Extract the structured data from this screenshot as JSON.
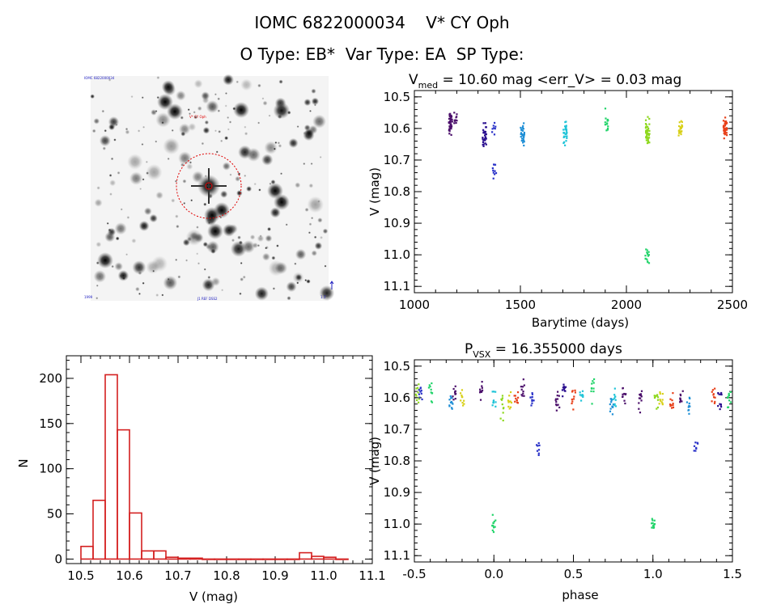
{
  "header": {
    "title": "IOMC 6822000034    V* CY Oph",
    "types": "O Type: EB*  Var Type: EA  SP Type:"
  },
  "thumbnail": {
    "tl_label": "IOMC 6822000034",
    "center_label": "V* CY Oph",
    "bl_label": "1999",
    "bc_label": "J1 REF DSS2",
    "br_label": "1.5'"
  },
  "chart_data": [
    {
      "id": "lightcurve",
      "type": "scatter",
      "title_main": "V",
      "title_sub": "med",
      "title_rest": " = 10.60 mag <err_V> = 0.03 mag",
      "xlabel": "Barytime (days)",
      "ylabel": "V (mag)",
      "xlim": [
        1000,
        2500
      ],
      "ylim": [
        11.12,
        10.48
      ],
      "y_inverted": true,
      "xticks": [
        1000,
        1500,
        2000,
        2500
      ],
      "yticks": [
        10.5,
        10.6,
        10.7,
        10.8,
        10.9,
        11.0,
        11.1
      ],
      "clusters": [
        {
          "x": 1170,
          "y": 10.58,
          "spread": 0.04,
          "n": 40,
          "color": "#4b0f6b"
        },
        {
          "x": 1195,
          "y": 10.57,
          "spread": 0.02,
          "n": 12,
          "color": "#4b0f6b"
        },
        {
          "x": 1330,
          "y": 10.62,
          "spread": 0.04,
          "n": 30,
          "color": "#2a0f8f"
        },
        {
          "x": 1375,
          "y": 10.6,
          "spread": 0.02,
          "n": 8,
          "color": "#2a32c8"
        },
        {
          "x": 1378,
          "y": 10.74,
          "spread": 0.03,
          "n": 10,
          "color": "#2a32c8"
        },
        {
          "x": 1510,
          "y": 10.62,
          "spread": 0.04,
          "n": 30,
          "color": "#1f8fd6"
        },
        {
          "x": 1710,
          "y": 10.61,
          "spread": 0.04,
          "n": 30,
          "color": "#20c4d8"
        },
        {
          "x": 1905,
          "y": 10.58,
          "spread": 0.04,
          "n": 15,
          "color": "#22d46a"
        },
        {
          "x": 2100,
          "y": 10.62,
          "spread": 0.05,
          "n": 45,
          "color": "#8ed81e"
        },
        {
          "x": 2098,
          "y": 11.0,
          "spread": 0.03,
          "n": 15,
          "color": "#22d46a"
        },
        {
          "x": 2255,
          "y": 10.6,
          "spread": 0.03,
          "n": 25,
          "color": "#d8d018"
        },
        {
          "x": 2465,
          "y": 10.6,
          "spread": 0.03,
          "n": 40,
          "color": "#e8401a"
        }
      ]
    },
    {
      "id": "histogram",
      "type": "bar",
      "xlabel": "V (mag)",
      "ylabel": "N",
      "xlim": [
        10.47,
        11.1
      ],
      "ylim": [
        -5,
        225
      ],
      "xticks": [
        10.5,
        10.6,
        10.7,
        10.8,
        10.9,
        11.0,
        11.1
      ],
      "yticks": [
        0,
        50,
        100,
        150,
        200
      ],
      "bin_width": 0.025,
      "bin_starts": [
        10.5,
        10.525,
        10.55,
        10.575,
        10.6,
        10.625,
        10.65,
        10.675,
        10.7,
        10.725,
        10.75,
        10.775,
        10.8,
        10.825,
        10.85,
        10.875,
        10.9,
        10.925,
        10.95,
        10.975,
        11.0,
        11.025
      ],
      "values": [
        14,
        65,
        204,
        143,
        51,
        9,
        9,
        2,
        1,
        1,
        0,
        0,
        0,
        0,
        0,
        0,
        0,
        0,
        7,
        3,
        2,
        0
      ],
      "color": "#d42020"
    },
    {
      "id": "phased",
      "type": "scatter",
      "title_main": "P",
      "title_sub": "VSX",
      "title_rest": " = 16.355000 days",
      "xlabel": "phase",
      "ylabel": "V (mag)",
      "xlim": [
        -0.5,
        1.5
      ],
      "ylim": [
        11.12,
        10.48
      ],
      "y_inverted": true,
      "xticks": [
        -0.5,
        0.0,
        0.5,
        1.0,
        1.5
      ],
      "yticks": [
        10.5,
        10.6,
        10.7,
        10.8,
        10.9,
        11.0,
        11.1
      ],
      "clusters": [
        {
          "x": -0.48,
          "y": 10.59,
          "spread": 0.03,
          "n": 12,
          "color": "#8ed81e"
        },
        {
          "x": -0.46,
          "y": 10.59,
          "spread": 0.03,
          "n": 10,
          "color": "#2a32c8"
        },
        {
          "x": -0.4,
          "y": 10.58,
          "spread": 0.04,
          "n": 10,
          "color": "#22d46a"
        },
        {
          "x": -0.27,
          "y": 10.62,
          "spread": 0.04,
          "n": 12,
          "color": "#1f8fd6"
        },
        {
          "x": -0.25,
          "y": 10.58,
          "spread": 0.03,
          "n": 10,
          "color": "#4b0f6b"
        },
        {
          "x": -0.2,
          "y": 10.6,
          "spread": 0.03,
          "n": 10,
          "color": "#d8d018"
        },
        {
          "x": -0.08,
          "y": 10.58,
          "spread": 0.03,
          "n": 12,
          "color": "#4b0f6b"
        },
        {
          "x": 0.0,
          "y": 10.61,
          "spread": 0.03,
          "n": 10,
          "color": "#20c4d8"
        },
        {
          "x": 0.0,
          "y": 11.0,
          "spread": 0.03,
          "n": 12,
          "color": "#22d46a"
        },
        {
          "x": 0.05,
          "y": 10.63,
          "spread": 0.04,
          "n": 10,
          "color": "#8ed81e"
        },
        {
          "x": 0.1,
          "y": 10.62,
          "spread": 0.04,
          "n": 10,
          "color": "#d8d018"
        },
        {
          "x": 0.14,
          "y": 10.6,
          "spread": 0.03,
          "n": 10,
          "color": "#e8401a"
        },
        {
          "x": 0.18,
          "y": 10.58,
          "spread": 0.04,
          "n": 10,
          "color": "#4b0f6b"
        },
        {
          "x": 0.24,
          "y": 10.61,
          "spread": 0.03,
          "n": 10,
          "color": "#2a32c8"
        },
        {
          "x": 0.28,
          "y": 10.75,
          "spread": 0.03,
          "n": 8,
          "color": "#2a32c8"
        },
        {
          "x": 0.4,
          "y": 10.6,
          "spread": 0.04,
          "n": 12,
          "color": "#4b0f6b"
        },
        {
          "x": 0.44,
          "y": 10.58,
          "spread": 0.03,
          "n": 10,
          "color": "#2a0f8f"
        },
        {
          "x": 0.5,
          "y": 10.6,
          "spread": 0.04,
          "n": 10,
          "color": "#e8401a"
        },
        {
          "x": 0.55,
          "y": 10.59,
          "spread": 0.03,
          "n": 10,
          "color": "#20c4d8"
        },
        {
          "x": 0.62,
          "y": 10.58,
          "spread": 0.04,
          "n": 10,
          "color": "#22d46a"
        },
        {
          "x": 0.74,
          "y": 10.62,
          "spread": 0.04,
          "n": 12,
          "color": "#1f8fd6"
        },
        {
          "x": 0.76,
          "y": 10.6,
          "spread": 0.03,
          "n": 10,
          "color": "#20c4d8"
        },
        {
          "x": 0.82,
          "y": 10.59,
          "spread": 0.03,
          "n": 10,
          "color": "#4b0f6b"
        },
        {
          "x": 0.92,
          "y": 10.6,
          "spread": 0.04,
          "n": 12,
          "color": "#4b0f6b"
        },
        {
          "x": 1.0,
          "y": 11.0,
          "spread": 0.03,
          "n": 12,
          "color": "#22d46a"
        },
        {
          "x": 1.02,
          "y": 10.61,
          "spread": 0.03,
          "n": 10,
          "color": "#8ed81e"
        },
        {
          "x": 1.05,
          "y": 10.6,
          "spread": 0.04,
          "n": 10,
          "color": "#d8d018"
        },
        {
          "x": 1.12,
          "y": 10.61,
          "spread": 0.03,
          "n": 10,
          "color": "#e8401a"
        },
        {
          "x": 1.18,
          "y": 10.59,
          "spread": 0.04,
          "n": 10,
          "color": "#4b0f6b"
        },
        {
          "x": 1.22,
          "y": 10.62,
          "spread": 0.03,
          "n": 10,
          "color": "#1f8fd6"
        },
        {
          "x": 1.27,
          "y": 10.75,
          "spread": 0.03,
          "n": 8,
          "color": "#2a32c8"
        },
        {
          "x": 1.38,
          "y": 10.6,
          "spread": 0.04,
          "n": 10,
          "color": "#e8401a"
        },
        {
          "x": 1.42,
          "y": 10.6,
          "spread": 0.04,
          "n": 12,
          "color": "#2a0f8f"
        },
        {
          "x": 1.48,
          "y": 10.6,
          "spread": 0.03,
          "n": 10,
          "color": "#22d46a"
        }
      ]
    }
  ]
}
